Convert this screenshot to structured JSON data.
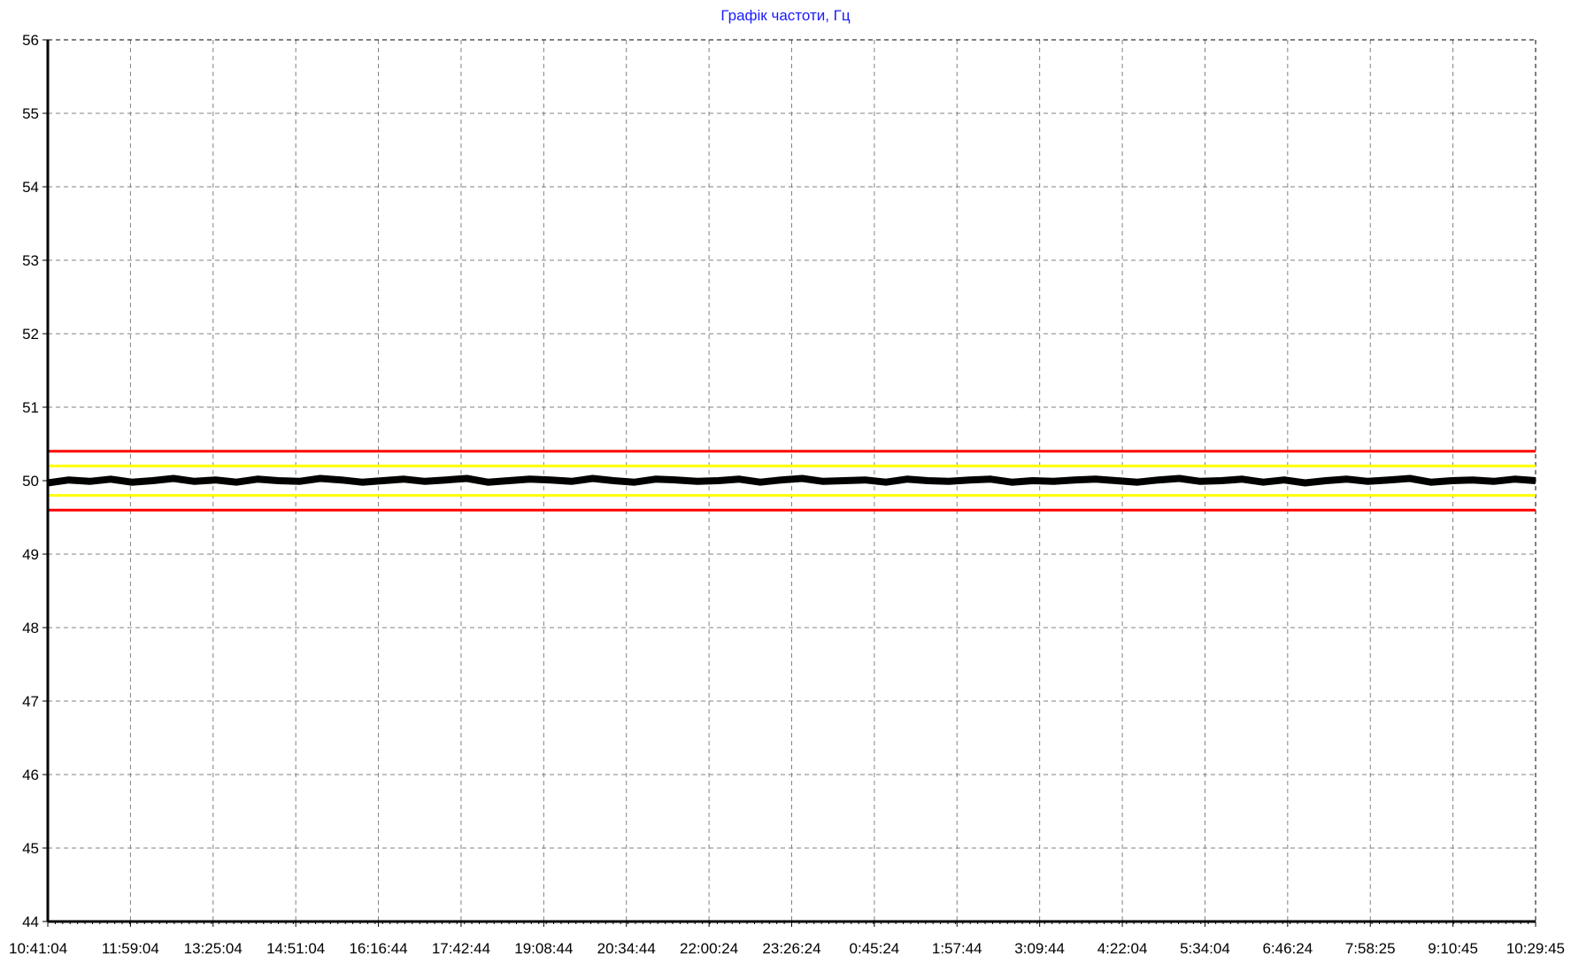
{
  "chart_data": {
    "type": "line",
    "title": "Графік частоти, Гц",
    "xlabel": "",
    "ylabel": "",
    "x_tick_labels": [
      "10:41:04",
      "11:59:04",
      "13:25:04",
      "14:51:04",
      "16:16:44",
      "17:42:44",
      "19:08:44",
      "20:34:44",
      "22:00:24",
      "23:26:24",
      "0:45:24",
      "1:57:44",
      "3:09:44",
      "4:22:04",
      "5:34:04",
      "6:46:24",
      "7:58:25",
      "9:10:45",
      "10:29:45"
    ],
    "y_ticks": [
      44,
      45,
      46,
      47,
      48,
      49,
      50,
      51,
      52,
      53,
      54,
      55,
      56
    ],
    "ylim": [
      44,
      56
    ],
    "grid": true,
    "series": [
      {
        "color": "#000000",
        "values": [
          49.97,
          50.01,
          49.99,
          50.02,
          49.98,
          50.0,
          50.03,
          49.99,
          50.01,
          49.98,
          50.02,
          50.0,
          49.99,
          50.03,
          50.01,
          49.98,
          50.0,
          50.02,
          49.99,
          50.01,
          50.03,
          49.98,
          50.0,
          50.02,
          50.01,
          49.99,
          50.03,
          50.0,
          49.98,
          50.02,
          50.01,
          49.99,
          50.0,
          50.02,
          49.98,
          50.01,
          50.03,
          49.99,
          50.0,
          50.01,
          49.98,
          50.02,
          50.0,
          49.99,
          50.01,
          50.02,
          49.98,
          50.0,
          49.99,
          50.01,
          50.02,
          50.0,
          49.98,
          50.01,
          50.03,
          49.99,
          50.0,
          50.02,
          49.98,
          50.01,
          49.97,
          50.0,
          50.02,
          49.99,
          50.01,
          50.03,
          49.98,
          50.0,
          50.01,
          49.99,
          50.02,
          50.0
        ]
      }
    ],
    "limit_lines": [
      {
        "value": 50.4,
        "color": "#ff0000"
      },
      {
        "value": 50.2,
        "color": "#ffff00"
      },
      {
        "value": 49.8,
        "color": "#ffff00"
      },
      {
        "value": 49.6,
        "color": "#ff0000"
      }
    ]
  }
}
